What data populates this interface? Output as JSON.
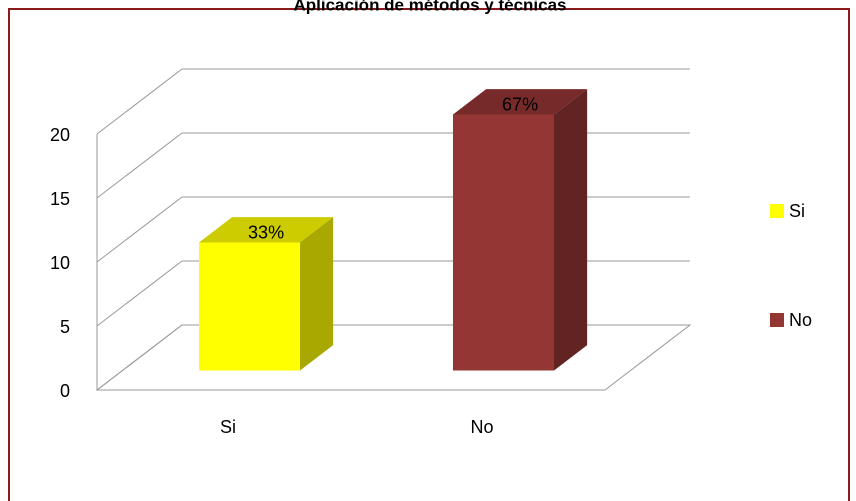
{
  "chart_data": {
    "type": "bar3d",
    "title": "Aplicación de métodos y técnicas",
    "categories": [
      "Si",
      "No"
    ],
    "values": [
      10,
      20
    ],
    "data_labels": [
      "33%",
      "67%"
    ],
    "colors": [
      "#ffff00",
      "#943634"
    ],
    "ylim": [
      0,
      20
    ],
    "yticks": [
      0,
      5,
      10,
      15,
      20
    ],
    "grid": true,
    "legend": "right"
  }
}
